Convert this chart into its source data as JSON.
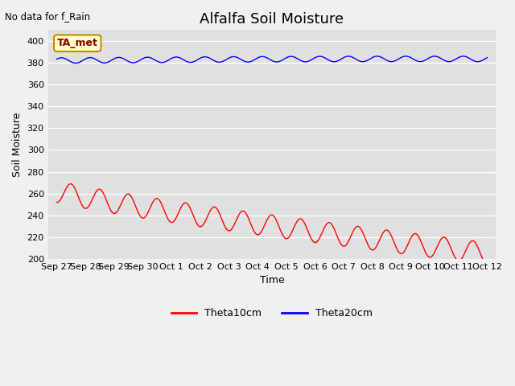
{
  "title": "Alfalfa Soil Moisture",
  "xlabel": "Time",
  "ylabel": "Soil Moisture",
  "top_left_text": "No data for f_Rain",
  "annotation_box": "TA_met",
  "ylim": [
    200,
    410
  ],
  "yticks": [
    200,
    220,
    240,
    260,
    280,
    300,
    320,
    340,
    360,
    380,
    400
  ],
  "xtick_labels": [
    "Sep 27",
    "Sep 28",
    "Sep 29",
    "Sep 30",
    "Oct 1",
    "Oct 2",
    "Oct 3",
    "Oct 4",
    "Oct 5",
    "Oct 6",
    "Oct 7",
    "Oct 8",
    "Oct 9",
    "Oct 10",
    "Oct 11",
    "Oct 12"
  ],
  "legend_labels": [
    "Theta10cm",
    "Theta20cm"
  ],
  "legend_colors": [
    "#ff0000",
    "#0000ff"
  ],
  "line1_color": "#ff0000",
  "line2_color": "#0000ff",
  "bg_color": "#e0e0e0",
  "fig_color": "#f0f0f0",
  "title_fontsize": 13,
  "axis_label_fontsize": 9,
  "tick_fontsize": 8
}
